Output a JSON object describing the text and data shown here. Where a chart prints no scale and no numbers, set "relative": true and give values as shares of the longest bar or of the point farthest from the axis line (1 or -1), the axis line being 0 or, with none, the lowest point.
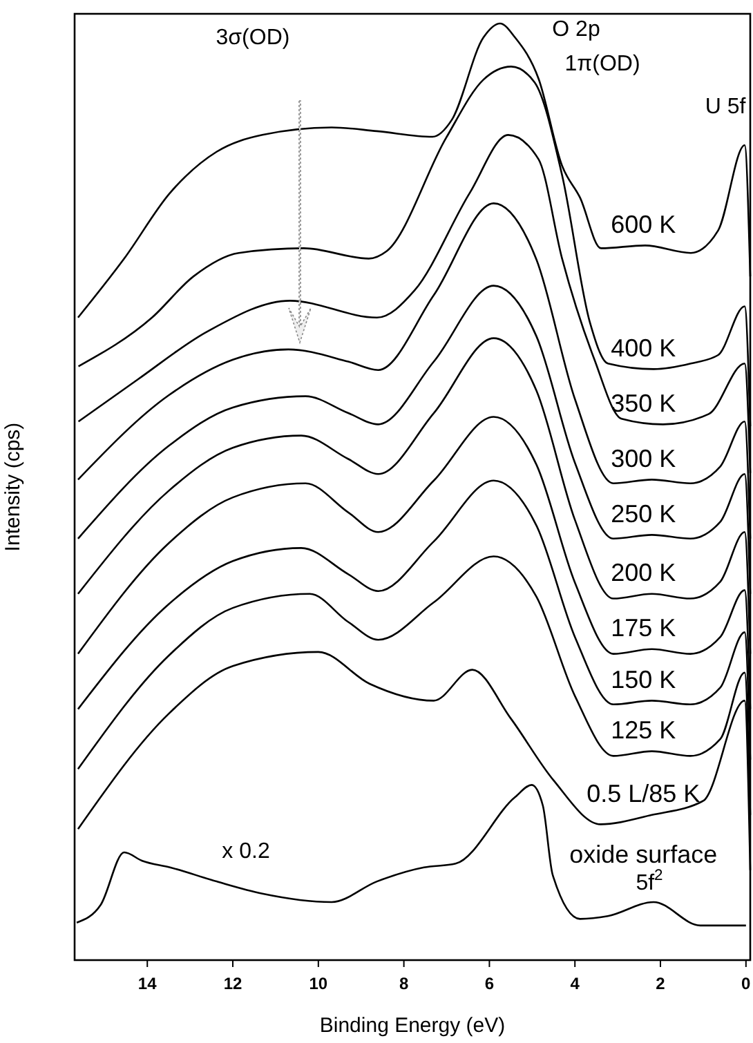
{
  "chart_data": {
    "type": "line",
    "relative": true,
    "xlabel": "Binding Energy (eV)",
    "ylabel": "Intensity (cps)",
    "xlim": [
      15.7,
      -0.1
    ],
    "xticks": [
      14,
      12,
      10,
      8,
      6,
      4,
      2,
      0
    ],
    "tick_labels": "x",
    "grid": false,
    "legend": false,
    "marker": "none",
    "line_style": "solid",
    "annotations": [
      "3σ(OD)",
      "O 2p",
      "1π(OD)",
      "U 5f",
      "x 0.2",
      "5f$^{2}$"
    ],
    "series": [
      {
        "name": "600 K",
        "color": "#000000",
        "x": [
          15.62,
          14.54,
          13.47,
          12.38,
          11.31,
          9.69,
          8.63,
          7.33,
          6.88,
          6.14,
          5.75,
          5.4,
          4.85,
          4.3,
          3.88,
          3.39,
          2.36,
          1.29,
          0.65,
          0.03,
          -0.1
        ],
        "values": [
          0.686,
          0.749,
          0.819,
          0.863,
          0.881,
          0.889,
          0.885,
          0.879,
          0.897,
          0.985,
          1.0,
          0.985,
          0.941,
          0.848,
          0.814,
          0.76,
          0.763,
          0.755,
          0.779,
          0.87,
          0.73
        ]
      },
      {
        "name": "400 K",
        "color": "#000000",
        "x": [
          15.61,
          13.89,
          12.92,
          11.86,
          10.34,
          8.82,
          8.4,
          7.01,
          6.14,
          5.49,
          4.94,
          4.3,
          3.65,
          3.23,
          2.16,
          1.29,
          0.65,
          0.03,
          -0.1
        ],
        "values": [
          0.634,
          0.686,
          0.73,
          0.755,
          0.76,
          0.749,
          0.757,
          0.878,
          0.94,
          0.954,
          0.937,
          0.838,
          0.681,
          0.637,
          0.631,
          0.637,
          0.646,
          0.698,
          0.57
        ]
      },
      {
        "name": "350 K",
        "color": "#000000",
        "x": [
          15.61,
          14.22,
          12.6,
          10.66,
          8.63,
          7.75,
          6.46,
          5.56,
          4.85,
          4.3,
          3.55,
          2.91,
          1.94,
          0.87,
          0.03,
          -0.1
        ],
        "values": [
          0.575,
          0.62,
          0.671,
          0.704,
          0.686,
          0.715,
          0.819,
          0.881,
          0.855,
          0.749,
          0.642,
          0.578,
          0.572,
          0.583,
          0.637,
          0.52
        ]
      },
      {
        "name": "300 K",
        "color": "#000000",
        "x": [
          15.62,
          13.5,
          12.0,
          10.7,
          9.3,
          8.6,
          7.3,
          5.9,
          4.9,
          4.0,
          3.1,
          2.2,
          1.3,
          0.6,
          0.03,
          -0.1
        ],
        "values": [
          0.513,
          0.603,
          0.641,
          0.652,
          0.639,
          0.63,
          0.71,
          0.808,
          0.748,
          0.599,
          0.509,
          0.513,
          0.509,
          0.527,
          0.575,
          0.45
        ]
      },
      {
        "name": "250 K",
        "color": "#000000",
        "x": [
          15.62,
          13.5,
          12.0,
          10.3,
          9.3,
          8.6,
          7.3,
          5.9,
          4.9,
          4.0,
          3.1,
          2.2,
          1.3,
          0.6,
          0.03,
          -0.1
        ],
        "values": [
          0.45,
          0.549,
          0.59,
          0.602,
          0.584,
          0.572,
          0.639,
          0.72,
          0.666,
          0.531,
          0.45,
          0.454,
          0.45,
          0.468,
          0.519,
          0.391
        ]
      },
      {
        "name": "200 K",
        "color": "#000000",
        "x": [
          15.62,
          13.5,
          12.0,
          10.4,
          9.3,
          8.6,
          7.3,
          5.9,
          4.9,
          4.0,
          3.1,
          2.2,
          1.3,
          0.6,
          0.03,
          -0.1
        ],
        "values": [
          0.391,
          0.501,
          0.547,
          0.56,
          0.535,
          0.519,
          0.584,
          0.664,
          0.608,
          0.47,
          0.386,
          0.391,
          0.386,
          0.404,
          0.457,
          0.327
        ]
      },
      {
        "name": "175 K",
        "color": "#000000",
        "x": [
          15.62,
          13.5,
          12.0,
          10.3,
          9.3,
          8.6,
          7.3,
          5.9,
          4.9,
          4.0,
          3.1,
          2.2,
          1.3,
          0.6,
          0.03,
          -0.1
        ],
        "values": [
          0.327,
          0.445,
          0.494,
          0.509,
          0.478,
          0.457,
          0.512,
          0.58,
          0.529,
          0.403,
          0.327,
          0.332,
          0.327,
          0.345,
          0.395,
          0.268
        ]
      },
      {
        "name": "150 K",
        "color": "#000000",
        "x": [
          15.62,
          13.5,
          12.0,
          10.4,
          9.3,
          8.6,
          7.3,
          5.9,
          4.9,
          4.0,
          3.1,
          2.2,
          1.3,
          0.6,
          0.03,
          -0.1
        ],
        "values": [
          0.268,
          0.38,
          0.426,
          0.44,
          0.412,
          0.394,
          0.447,
          0.512,
          0.464,
          0.345,
          0.273,
          0.277,
          0.273,
          0.291,
          0.35,
          0.214
        ]
      },
      {
        "name": "125 K",
        "color": "#000000",
        "x": [
          15.62,
          13.5,
          12.0,
          10.2,
          9.3,
          8.6,
          7.3,
          5.9,
          4.9,
          4.0,
          3.1,
          2.2,
          1.3,
          0.6,
          0.03,
          -0.1
        ],
        "values": [
          0.204,
          0.325,
          0.376,
          0.391,
          0.361,
          0.342,
          0.382,
          0.431,
          0.388,
          0.282,
          0.218,
          0.223,
          0.218,
          0.236,
          0.307,
          0.155
        ]
      },
      {
        "name": "0.5 L/85 K",
        "color": "#000000",
        "x": [
          15.62,
          13.5,
          12.0,
          10.0,
          8.8,
          7.3,
          6.4,
          5.5,
          4.5,
          3.4,
          2.2,
          1.0,
          0.03,
          -0.1
        ],
        "values": [
          0.14,
          0.263,
          0.314,
          0.329,
          0.295,
          0.277,
          0.31,
          0.258,
          0.192,
          0.145,
          0.155,
          0.17,
          0.277,
          0.096
        ]
      },
      {
        "name": "oxide surface",
        "color": "#000000",
        "x": [
          15.65,
          15.09,
          14.54,
          14.12,
          13.47,
          12.38,
          11.31,
          9.69,
          8.63,
          7.53,
          6.79,
          5.4,
          5.01,
          4.75,
          4.52,
          3.88,
          3.23,
          2.16,
          1.07,
          0.0
        ],
        "values": [
          0.04,
          0.059,
          0.115,
          0.106,
          0.099,
          0.084,
          0.071,
          0.062,
          0.084,
          0.099,
          0.103,
          0.174,
          0.187,
          0.165,
          0.091,
          0.044,
          0.047,
          0.062,
          0.037,
          0.037
        ]
      }
    ]
  }
}
